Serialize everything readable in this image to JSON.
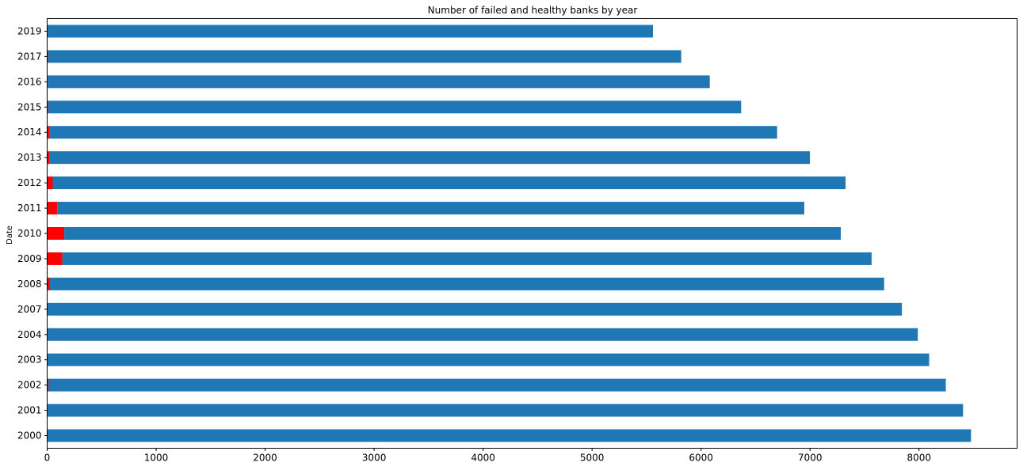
{
  "chart_data": {
    "type": "bar",
    "orientation": "horizontal",
    "stacked": true,
    "title": "Number of failed and healthy banks by year",
    "ylabel": "Date",
    "xlabel": "",
    "categories": [
      "2000",
      "2001",
      "2002",
      "2003",
      "2004",
      "2007",
      "2008",
      "2009",
      "2010",
      "2011",
      "2012",
      "2013",
      "2014",
      "2015",
      "2016",
      "2017",
      "2019"
    ],
    "series": [
      {
        "color": "#ff0000",
        "values": [
          2,
          4,
          11,
          3,
          4,
          3,
          25,
          140,
          157,
          92,
          51,
          24,
          18,
          8,
          5,
          8,
          4
        ]
      },
      {
        "color": "#1f77b4",
        "values": [
          8475,
          8400,
          8235,
          8090,
          7985,
          7840,
          7655,
          7425,
          7125,
          6855,
          7275,
          6975,
          6680,
          6360,
          6075,
          5810,
          5555
        ]
      }
    ],
    "xlim": [
      0,
      8900
    ],
    "xticks": [
      0,
      1000,
      2000,
      3000,
      4000,
      5000,
      6000,
      7000,
      8000
    ],
    "grid": false,
    "legend": "none"
  }
}
